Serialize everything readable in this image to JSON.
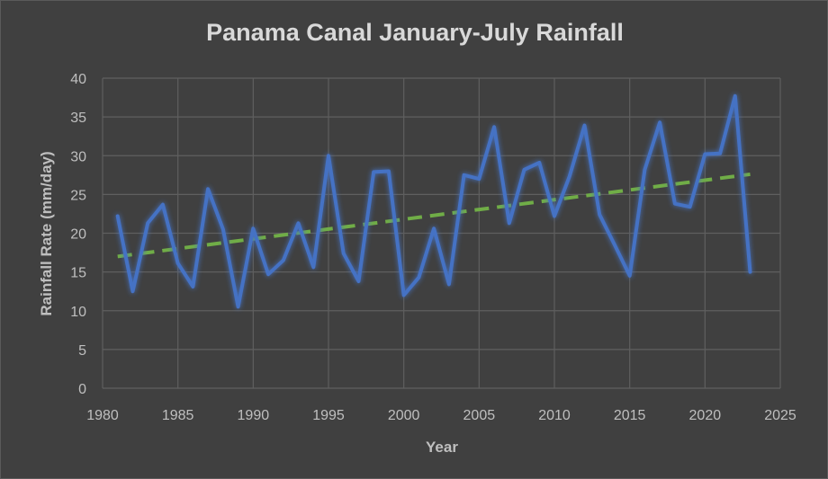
{
  "chart_data": {
    "type": "line",
    "title": "Panama Canal January-July Rainfall",
    "xlabel": "Year",
    "ylabel": "Rainfall Rate (mm/day)",
    "xlim": [
      1980,
      2025
    ],
    "ylim": [
      0,
      40
    ],
    "x_ticks": [
      "1980",
      "1985",
      "1990",
      "1995",
      "2000",
      "2005",
      "2010",
      "2015",
      "2020",
      "2025"
    ],
    "y_ticks": [
      "0",
      "5",
      "10",
      "15",
      "20",
      "25",
      "30",
      "35",
      "40"
    ],
    "grid": true,
    "legend": "none",
    "series": [
      {
        "color": "#4472c4",
        "x": [
          1981,
          1982,
          1983,
          1984,
          1985,
          1986,
          1987,
          1988,
          1989,
          1990,
          1991,
          1992,
          1993,
          1994,
          1995,
          1996,
          1997,
          1998,
          1999,
          2000,
          2001,
          2002,
          2003,
          2004,
          2005,
          2006,
          2007,
          2008,
          2009,
          2010,
          2011,
          2012,
          2013,
          2014,
          2015,
          2016,
          2017,
          2018,
          2019,
          2020,
          2021,
          2022,
          2023
        ],
        "y": [
          22.2,
          12.5,
          21.3,
          23.7,
          16.1,
          13.1,
          25.7,
          20.5,
          10.5,
          20.6,
          14.7,
          16.5,
          21.3,
          15.6,
          30.0,
          17.4,
          13.8,
          27.9,
          28.0,
          12.0,
          14.3,
          20.6,
          13.4,
          27.5,
          27.0,
          33.7,
          21.3,
          28.2,
          29.1,
          22.2,
          27.3,
          33.9,
          22.4,
          18.5,
          14.5,
          28.2,
          34.3,
          23.8,
          23.4,
          30.2,
          30.3,
          37.7,
          15.0
        ]
      }
    ],
    "trendline": {
      "style": "dashed",
      "color": "#70ad47",
      "x": [
        1981,
        2023
      ],
      "y": [
        17.0,
        27.6
      ]
    }
  }
}
